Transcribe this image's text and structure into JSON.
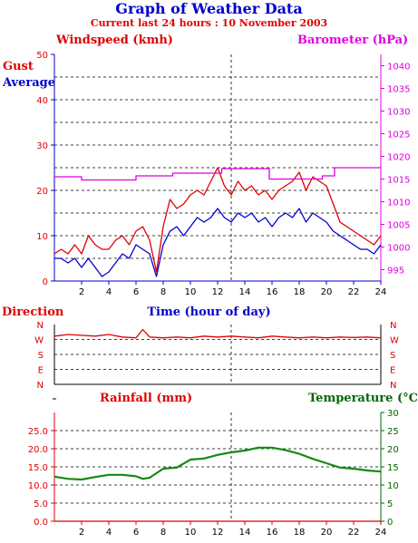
{
  "header": {
    "title": "Graph of Weather Data",
    "subtitle": "Current last 24 hours : 10 November 2003"
  },
  "colors": {
    "red": "#e00000",
    "blue": "#0000cc",
    "magenta": "#e000e0",
    "green": "#006600",
    "darkgreen": "#138a13",
    "grid": "#000000"
  },
  "chart_data": [
    {
      "type": "line",
      "labels": {
        "windspeed": "Windspeed (kmh)",
        "barometer": "Barometer (hPa)",
        "gust": "Gust",
        "average": "Average",
        "xlabel": "Time (hour of day)"
      },
      "x_ticks": [
        "2",
        "4",
        "6",
        "8",
        "10",
        "12",
        "14",
        "16",
        "18",
        "20",
        "22",
        "24"
      ],
      "y_left_ticks": [
        "0",
        "10",
        "20",
        "30",
        "40",
        "50"
      ],
      "y_right_ticks": [
        "995",
        "1000",
        "1005",
        "1010",
        "1015",
        "1020",
        "1025",
        "1030",
        "1035",
        "1040"
      ],
      "ylim_left": [
        0,
        50
      ],
      "ylim_right": [
        992.5,
        1042.5
      ],
      "xlim": [
        0,
        24
      ],
      "grid": true,
      "series": [
        {
          "name": "Gust",
          "color": "#e00000",
          "x": [
            0,
            0.5,
            1,
            1.5,
            2,
            2.5,
            3,
            3.5,
            4,
            4.5,
            5,
            5.5,
            6,
            6.5,
            7,
            7.5,
            8,
            8.5,
            9,
            9.5,
            10,
            10.5,
            11,
            11.5,
            12,
            12.5,
            13,
            13.5,
            14,
            14.5,
            15,
            15.5,
            16,
            16.5,
            17,
            17.5,
            18,
            18.5,
            19,
            19.5,
            20,
            20.5,
            21,
            21.5,
            22,
            22.5,
            23,
            23.5,
            24
          ],
          "values": [
            6,
            7,
            6,
            8,
            6,
            10,
            8,
            7,
            7,
            9,
            10,
            8,
            11,
            12,
            9,
            2,
            12,
            18,
            16,
            17,
            19,
            20,
            19,
            22,
            25,
            21,
            19,
            22,
            20,
            21,
            19,
            20,
            18,
            20,
            21,
            22,
            24,
            20,
            23,
            22,
            21,
            17,
            13,
            12,
            11,
            10,
            9,
            8,
            10
          ]
        },
        {
          "name": "Average",
          "color": "#0000cc",
          "x": [
            0,
            0.5,
            1,
            1.5,
            2,
            2.5,
            3,
            3.5,
            4,
            4.5,
            5,
            5.5,
            6,
            6.5,
            7,
            7.5,
            8,
            8.5,
            9,
            9.5,
            10,
            10.5,
            11,
            11.5,
            12,
            12.5,
            13,
            13.5,
            14,
            14.5,
            15,
            15.5,
            16,
            16.5,
            17,
            17.5,
            18,
            18.5,
            19,
            19.5,
            20,
            20.5,
            21,
            21.5,
            22,
            22.5,
            23,
            23.5,
            24
          ],
          "values": [
            5,
            5,
            4,
            5,
            3,
            5,
            3,
            1,
            2,
            4,
            6,
            5,
            8,
            7,
            6,
            1,
            8,
            11,
            12,
            10,
            12,
            14,
            13,
            14,
            16,
            14,
            13,
            15,
            14,
            15,
            13,
            14,
            12,
            14,
            15,
            14,
            16,
            13,
            15,
            14,
            13,
            11,
            10,
            9,
            8,
            7,
            7,
            6,
            8
          ]
        },
        {
          "name": "Barometer",
          "color": "#e000e0",
          "axis": "right",
          "x": [
            0,
            2,
            2,
            6,
            6,
            8.7,
            8.7,
            12.3,
            12.3,
            15.8,
            15.8,
            19.7,
            19.7,
            20.6,
            20.6,
            24
          ],
          "values": [
            1015.5,
            1015.5,
            1014.8,
            1014.8,
            1015.7,
            1015.7,
            1016.3,
            1016.3,
            1017.3,
            1017.3,
            1015.0,
            1015.0,
            1015.7,
            1015.7,
            1017.5,
            1017.5
          ]
        }
      ]
    },
    {
      "type": "line",
      "labels": {
        "title": "Direction"
      },
      "y_ticks": [
        "N",
        "W",
        "S",
        "E",
        "N"
      ],
      "ylim": [
        0,
        360
      ],
      "xlim": [
        0,
        24
      ],
      "grid": true,
      "series": [
        {
          "name": "Direction",
          "color": "#e00000",
          "x": [
            0,
            1,
            2,
            3,
            4,
            5,
            6,
            6.5,
            7,
            8,
            9,
            10,
            11,
            12,
            13,
            14,
            15,
            16,
            17,
            18,
            19,
            20,
            21,
            22,
            23,
            24
          ],
          "values": [
            290,
            300,
            295,
            290,
            300,
            285,
            280,
            330,
            285,
            280,
            285,
            280,
            290,
            285,
            290,
            285,
            280,
            290,
            285,
            280,
            285,
            280,
            285,
            282,
            285,
            280
          ]
        }
      ]
    },
    {
      "type": "line",
      "labels": {
        "rainfall": "Rainfall (mm)",
        "temperature": "Temperature",
        "temperature_unit": "(°C)"
      },
      "y_left_ticks": [
        "0.0",
        "5.0",
        "10.0",
        "15.0",
        "20.0",
        "25.0"
      ],
      "y_right_ticks": [
        "0",
        "5",
        "10",
        "15",
        "20",
        "25",
        "30"
      ],
      "x_ticks": [
        "2",
        "4",
        "6",
        "8",
        "10",
        "12",
        "14",
        "16",
        "18",
        "20",
        "22",
        "24"
      ],
      "ylim_left": [
        0,
        30
      ],
      "ylim_right": [
        0,
        30
      ],
      "xlim": [
        0,
        24
      ],
      "grid": true,
      "series": [
        {
          "name": "Rainfall",
          "color": "#e00000",
          "x": [
            0,
            24
          ],
          "values": [
            0,
            0
          ]
        },
        {
          "name": "Temperature",
          "color": "#138a13",
          "axis": "right",
          "x": [
            0,
            1,
            2,
            3,
            4,
            5,
            6,
            6.5,
            7,
            8,
            9,
            10,
            11,
            12,
            13,
            14,
            15,
            16,
            17,
            18,
            19,
            20,
            21,
            22,
            23,
            24
          ],
          "values": [
            12.3,
            11.7,
            11.5,
            12.2,
            12.8,
            12.8,
            12.4,
            11.7,
            12.0,
            14.5,
            14.8,
            17.0,
            17.3,
            18.3,
            19.0,
            19.5,
            20.3,
            20.3,
            19.6,
            18.6,
            17.2,
            16.0,
            14.8,
            14.5,
            14.0,
            13.7
          ]
        }
      ]
    }
  ]
}
